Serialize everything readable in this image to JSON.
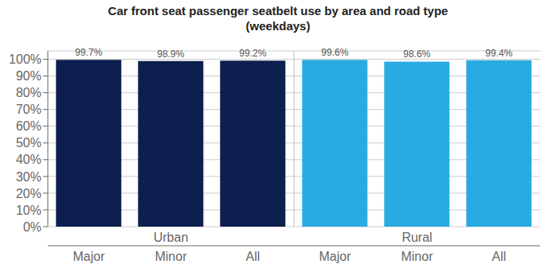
{
  "chart_data": {
    "type": "bar",
    "title": "Car front seat passenger seatbelt use by area and road type\n(weekdays)",
    "categories": [
      "Major",
      "Minor",
      "All",
      "Major",
      "Minor",
      "All"
    ],
    "values": [
      99.7,
      98.9,
      99.2,
      99.6,
      98.6,
      99.4
    ],
    "value_labels": [
      "99.7%",
      "98.9%",
      "99.2%",
      "99.6%",
      "98.6%",
      "99.4%"
    ],
    "colors": [
      "#0D1F4E",
      "#0D1F4E",
      "#0D1F4E",
      "#29ABE2",
      "#29ABE2",
      "#29ABE2"
    ],
    "annotations": [
      "Urban",
      "Rural"
    ],
    "ylim": [
      0,
      105
    ],
    "yticks": [
      {
        "value": 0,
        "label": "0%"
      },
      {
        "value": 10,
        "label": "10%"
      },
      {
        "value": 20,
        "label": "20%"
      },
      {
        "value": 30,
        "label": "30%"
      },
      {
        "value": 40,
        "label": "40%"
      },
      {
        "value": 50,
        "label": "50%"
      },
      {
        "value": 60,
        "label": "60%"
      },
      {
        "value": 70,
        "label": "70%"
      },
      {
        "value": 80,
        "label": "80%"
      },
      {
        "value": 90,
        "label": "90%"
      },
      {
        "value": 100,
        "label": "100%"
      }
    ],
    "grid": true,
    "data_labels": true
  }
}
